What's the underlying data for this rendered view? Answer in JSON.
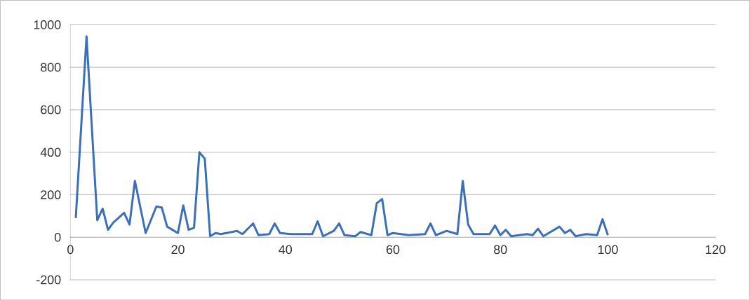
{
  "chart_data": {
    "type": "line",
    "x": [
      1,
      3,
      5,
      6,
      7,
      8,
      10,
      11,
      12,
      14,
      16,
      17,
      18,
      20,
      21,
      22,
      23,
      24,
      25,
      26,
      27,
      28,
      31,
      32,
      34,
      35,
      37,
      38,
      39,
      41,
      45,
      46,
      47,
      49,
      50,
      51,
      53,
      54,
      56,
      57,
      58,
      59,
      60,
      63,
      66,
      67,
      68,
      70,
      72,
      73,
      74,
      75,
      78,
      79,
      80,
      81,
      82,
      85,
      86,
      87,
      88,
      91,
      92,
      93,
      94,
      96,
      98,
      99,
      100
    ],
    "series": [
      {
        "color": "#3b6fb6",
        "values": [
          90,
          945,
          80,
          135,
          35,
          70,
          115,
          60,
          265,
          20,
          145,
          140,
          50,
          20,
          150,
          35,
          45,
          400,
          370,
          5,
          20,
          15,
          30,
          15,
          65,
          10,
          15,
          65,
          20,
          15,
          15,
          75,
          5,
          30,
          65,
          10,
          5,
          25,
          10,
          160,
          180,
          10,
          20,
          10,
          15,
          65,
          10,
          30,
          15,
          265,
          60,
          15,
          15,
          55,
          10,
          35,
          5,
          15,
          10,
          40,
          5,
          50,
          20,
          35,
          5,
          15,
          10,
          85,
          10
        ]
      }
    ],
    "xlim": [
      0,
      120
    ],
    "xticks": [
      0,
      20,
      40,
      60,
      80,
      100,
      120
    ],
    "ylim": [
      -200,
      1000
    ],
    "yticks": [
      -200,
      0,
      200,
      400,
      600,
      800,
      1000
    ],
    "grid": "y",
    "marker": "none",
    "line_style": "solid"
  }
}
